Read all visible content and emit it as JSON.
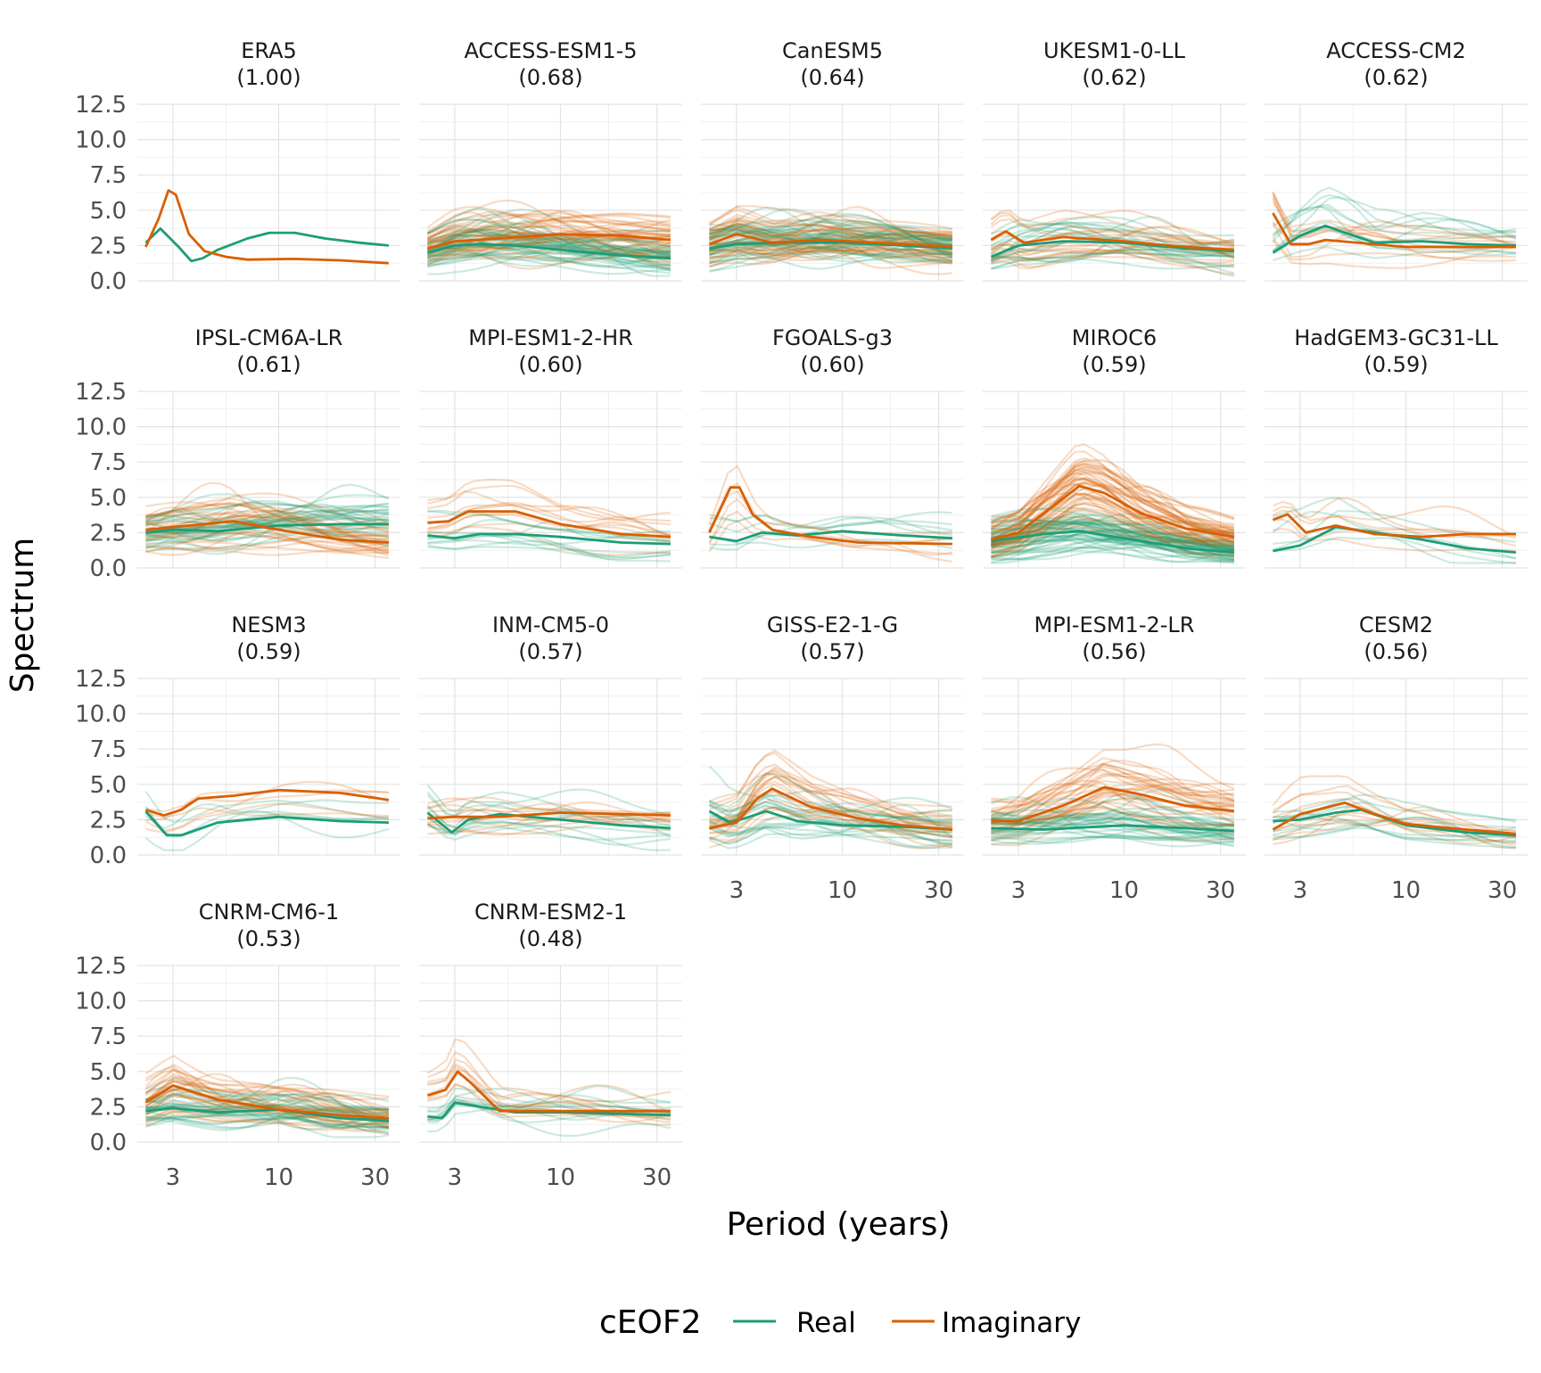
{
  "chart_data": {
    "type": "line",
    "ylabel": "Spectrum",
    "xlabel": "Period (years)",
    "x_scale": "log",
    "xlim": [
      2,
      40
    ],
    "ylim": [
      0,
      12.5
    ],
    "x_ticks": [
      3,
      10,
      30
    ],
    "x_tick_labels": [
      "3",
      "10",
      "30"
    ],
    "y_ticks": [
      0,
      2.5,
      5,
      7.5,
      10,
      12.5
    ],
    "y_tick_labels": [
      "0.0",
      "2.5",
      "5.0",
      "7.5",
      "10.0",
      "12.5"
    ],
    "grid": true,
    "legend": {
      "title": "cEOF2",
      "position": "bottom",
      "entries": [
        {
          "name": "Real",
          "color": "#1b9e77"
        },
        {
          "name": "Imaginary",
          "color": "#d95f02"
        }
      ]
    },
    "colors": {
      "Real": "#1b9e77",
      "Imaginary": "#d95f02"
    },
    "panels": [
      {
        "title": "ERA5",
        "score": "(1.00)",
        "members": 0,
        "real": [
          [
            2.2,
            2.7
          ],
          [
            2.6,
            3.7
          ],
          [
            3.2,
            2.4
          ],
          [
            3.7,
            1.4
          ],
          [
            4.2,
            1.6
          ],
          [
            5,
            2.2
          ],
          [
            7,
            3.0
          ],
          [
            9,
            3.4
          ],
          [
            12,
            3.4
          ],
          [
            17,
            3.0
          ],
          [
            25,
            2.7
          ],
          [
            35,
            2.5
          ]
        ],
        "imaginary": [
          [
            2.2,
            2.4
          ],
          [
            2.55,
            4.4
          ],
          [
            2.85,
            6.4
          ],
          [
            3.1,
            6.1
          ],
          [
            3.6,
            3.3
          ],
          [
            4.3,
            2.1
          ],
          [
            5.5,
            1.7
          ],
          [
            7,
            1.5
          ],
          [
            12,
            1.55
          ],
          [
            20,
            1.45
          ],
          [
            35,
            1.25
          ]
        ]
      },
      {
        "title": "ACCESS-ESM1-5",
        "score": "(0.68)",
        "members": 40,
        "real": [
          [
            2.2,
            2.0
          ],
          [
            3,
            2.5
          ],
          [
            4,
            2.6
          ],
          [
            6,
            2.5
          ],
          [
            10,
            2.2
          ],
          [
            20,
            1.8
          ],
          [
            35,
            1.6
          ]
        ],
        "imaginary": [
          [
            2.2,
            2.3
          ],
          [
            3,
            2.8
          ],
          [
            5,
            3.0
          ],
          [
            10,
            3.3
          ],
          [
            20,
            3.2
          ],
          [
            35,
            2.9
          ]
        ]
      },
      {
        "title": "CanESM5",
        "score": "(0.64)",
        "members": 40,
        "real": [
          [
            2.2,
            2.3
          ],
          [
            3,
            2.6
          ],
          [
            5,
            2.7
          ],
          [
            10,
            2.7
          ],
          [
            20,
            2.5
          ],
          [
            35,
            2.3
          ]
        ],
        "imaginary": [
          [
            2.2,
            2.6
          ],
          [
            3,
            3.3
          ],
          [
            4.5,
            2.7
          ],
          [
            8,
            2.9
          ],
          [
            20,
            2.6
          ],
          [
            35,
            2.4
          ]
        ]
      },
      {
        "title": "UKESM1-0-LL",
        "score": "(0.62)",
        "members": 19,
        "real": [
          [
            2.2,
            1.7
          ],
          [
            3,
            2.5
          ],
          [
            5,
            2.8
          ],
          [
            10,
            2.7
          ],
          [
            20,
            2.3
          ],
          [
            35,
            2.1
          ]
        ],
        "imaginary": [
          [
            2.2,
            2.9
          ],
          [
            2.6,
            3.5
          ],
          [
            3.2,
            2.7
          ],
          [
            5,
            3.1
          ],
          [
            10,
            2.8
          ],
          [
            20,
            2.4
          ],
          [
            35,
            2.2
          ]
        ]
      },
      {
        "title": "ACCESS-CM2",
        "score": "(0.62)",
        "members": 10,
        "real": [
          [
            2.2,
            2.0
          ],
          [
            3,
            3.2
          ],
          [
            4,
            3.9
          ],
          [
            5,
            3.4
          ],
          [
            7,
            2.7
          ],
          [
            12,
            2.8
          ],
          [
            20,
            2.6
          ],
          [
            35,
            2.5
          ]
        ],
        "imaginary": [
          [
            2.2,
            4.8
          ],
          [
            2.7,
            2.6
          ],
          [
            3.3,
            2.6
          ],
          [
            4,
            2.9
          ],
          [
            10,
            2.4
          ],
          [
            20,
            2.4
          ],
          [
            35,
            2.4
          ]
        ]
      },
      {
        "title": "IPSL-CM6A-LR",
        "score": "(0.61)",
        "members": 30,
        "real": [
          [
            2.2,
            2.5
          ],
          [
            3,
            2.7
          ],
          [
            5,
            2.6
          ],
          [
            10,
            3.0
          ],
          [
            20,
            3.1
          ],
          [
            35,
            3.1
          ]
        ],
        "imaginary": [
          [
            2.2,
            2.7
          ],
          [
            3,
            2.9
          ],
          [
            6,
            3.3
          ],
          [
            10,
            2.7
          ],
          [
            20,
            2.0
          ],
          [
            35,
            1.8
          ]
        ]
      },
      {
        "title": "MPI-ESM1-2-HR",
        "score": "(0.60)",
        "members": 10,
        "real": [
          [
            2.2,
            2.3
          ],
          [
            3,
            2.1
          ],
          [
            4,
            2.4
          ],
          [
            6,
            2.4
          ],
          [
            10,
            2.2
          ],
          [
            20,
            1.8
          ],
          [
            35,
            1.7
          ]
        ],
        "imaginary": [
          [
            2.2,
            3.2
          ],
          [
            2.8,
            3.3
          ],
          [
            3.5,
            4.0
          ],
          [
            6,
            4.0
          ],
          [
            10,
            3.1
          ],
          [
            20,
            2.4
          ],
          [
            35,
            2.2
          ]
        ]
      },
      {
        "title": "FGOALS-g3",
        "score": "(0.60)",
        "members": 6,
        "real": [
          [
            2.2,
            2.2
          ],
          [
            3,
            1.9
          ],
          [
            4,
            2.5
          ],
          [
            6,
            2.3
          ],
          [
            10,
            2.6
          ],
          [
            20,
            2.3
          ],
          [
            35,
            2.1
          ]
        ],
        "imaginary": [
          [
            2.2,
            2.5
          ],
          [
            2.8,
            5.7
          ],
          [
            3.1,
            5.7
          ],
          [
            3.6,
            3.8
          ],
          [
            4.5,
            2.7
          ],
          [
            7,
            2.2
          ],
          [
            12,
            1.8
          ],
          [
            35,
            1.7
          ]
        ]
      },
      {
        "title": "MIROC6",
        "score": "(0.59)",
        "members": 50,
        "real": [
          [
            2.2,
            1.9
          ],
          [
            4,
            2.4
          ],
          [
            6,
            2.6
          ],
          [
            10,
            2.1
          ],
          [
            20,
            1.4
          ],
          [
            35,
            1.1
          ]
        ],
        "imaginary": [
          [
            2.2,
            2.0
          ],
          [
            3,
            2.5
          ],
          [
            4.5,
            4.4
          ],
          [
            6,
            5.8
          ],
          [
            8,
            5.3
          ],
          [
            12,
            3.9
          ],
          [
            20,
            2.8
          ],
          [
            35,
            2.2
          ]
        ]
      },
      {
        "title": "HadGEM3-GC31-LL",
        "score": "(0.59)",
        "members": 5,
        "real": [
          [
            2.2,
            1.2
          ],
          [
            3,
            1.6
          ],
          [
            4.5,
            2.9
          ],
          [
            7,
            2.5
          ],
          [
            12,
            2.0
          ],
          [
            20,
            1.4
          ],
          [
            35,
            1.1
          ]
        ],
        "imaginary": [
          [
            2.2,
            3.4
          ],
          [
            2.6,
            3.8
          ],
          [
            3.2,
            2.5
          ],
          [
            4.5,
            3.0
          ],
          [
            7,
            2.4
          ],
          [
            12,
            2.2
          ],
          [
            20,
            2.4
          ],
          [
            35,
            2.4
          ]
        ]
      },
      {
        "title": "NESM3",
        "score": "(0.59)",
        "members": 5,
        "real": [
          [
            2.2,
            3.1
          ],
          [
            2.8,
            1.4
          ],
          [
            3.3,
            1.4
          ],
          [
            5,
            2.3
          ],
          [
            10,
            2.7
          ],
          [
            20,
            2.4
          ],
          [
            35,
            2.3
          ]
        ],
        "imaginary": [
          [
            2.2,
            3.2
          ],
          [
            2.7,
            2.8
          ],
          [
            3.3,
            3.2
          ],
          [
            4,
            4.0
          ],
          [
            6,
            4.2
          ],
          [
            10,
            4.6
          ],
          [
            20,
            4.4
          ],
          [
            35,
            3.9
          ]
        ]
      },
      {
        "title": "INM-CM5-0",
        "score": "(0.57)",
        "members": 10,
        "real": [
          [
            2.2,
            3.0
          ],
          [
            2.9,
            1.6
          ],
          [
            3.5,
            2.5
          ],
          [
            5,
            2.9
          ],
          [
            10,
            2.5
          ],
          [
            20,
            2.1
          ],
          [
            35,
            1.9
          ]
        ],
        "imaginary": [
          [
            2.2,
            2.6
          ],
          [
            3,
            2.7
          ],
          [
            5,
            2.7
          ],
          [
            10,
            3.0
          ],
          [
            20,
            2.9
          ],
          [
            35,
            2.8
          ]
        ]
      },
      {
        "title": "GISS-E2-1-G",
        "score": "(0.57)",
        "members": 20,
        "real": [
          [
            2.2,
            3.1
          ],
          [
            2.8,
            2.3
          ],
          [
            3.3,
            2.6
          ],
          [
            4.2,
            3.1
          ],
          [
            6,
            2.4
          ],
          [
            10,
            2.1
          ],
          [
            20,
            2.0
          ],
          [
            35,
            1.8
          ]
        ],
        "imaginary": [
          [
            2.2,
            1.9
          ],
          [
            3,
            2.3
          ],
          [
            3.8,
            4.0
          ],
          [
            4.5,
            4.7
          ],
          [
            7,
            3.4
          ],
          [
            12,
            2.6
          ],
          [
            20,
            2.1
          ],
          [
            35,
            1.8
          ]
        ]
      },
      {
        "title": "MPI-ESM1-2-LR",
        "score": "(0.56)",
        "members": 30,
        "real": [
          [
            2.2,
            1.9
          ],
          [
            4,
            1.8
          ],
          [
            10,
            2.1
          ],
          [
            20,
            1.9
          ],
          [
            35,
            1.7
          ]
        ],
        "imaginary": [
          [
            2.2,
            2.4
          ],
          [
            3,
            2.4
          ],
          [
            5,
            3.5
          ],
          [
            8,
            4.8
          ],
          [
            12,
            4.3
          ],
          [
            20,
            3.5
          ],
          [
            35,
            3.1
          ]
        ]
      },
      {
        "title": "CESM2",
        "score": "(0.56)",
        "members": 10,
        "real": [
          [
            2.2,
            2.4
          ],
          [
            3,
            2.5
          ],
          [
            4.5,
            3.0
          ],
          [
            6,
            3.2
          ],
          [
            10,
            2.1
          ],
          [
            20,
            1.6
          ],
          [
            35,
            1.4
          ]
        ],
        "imaginary": [
          [
            2.2,
            1.8
          ],
          [
            3,
            2.9
          ],
          [
            5,
            3.7
          ],
          [
            7,
            2.9
          ],
          [
            10,
            2.2
          ],
          [
            20,
            1.8
          ],
          [
            35,
            1.5
          ]
        ]
      },
      {
        "title": "CNRM-CM6-1",
        "score": "(0.53)",
        "members": 30,
        "real": [
          [
            2.2,
            2.2
          ],
          [
            3,
            2.4
          ],
          [
            5,
            2.1
          ],
          [
            10,
            2.3
          ],
          [
            20,
            1.7
          ],
          [
            35,
            1.5
          ]
        ],
        "imaginary": [
          [
            2.2,
            2.8
          ],
          [
            3,
            4.0
          ],
          [
            5,
            3.0
          ],
          [
            10,
            2.3
          ],
          [
            20,
            1.9
          ],
          [
            35,
            1.7
          ]
        ]
      },
      {
        "title": "CNRM-ESM2-1",
        "score": "(0.48)",
        "members": 10,
        "real": [
          [
            2.2,
            1.8
          ],
          [
            2.6,
            1.7
          ],
          [
            3,
            2.8
          ],
          [
            4,
            2.5
          ],
          [
            6,
            2.1
          ],
          [
            10,
            2.1
          ],
          [
            20,
            2.0
          ],
          [
            35,
            1.9
          ]
        ],
        "imaginary": [
          [
            2.2,
            3.3
          ],
          [
            2.7,
            3.7
          ],
          [
            3.1,
            5.0
          ],
          [
            3.6,
            4.2
          ],
          [
            5,
            2.2
          ],
          [
            10,
            2.2
          ],
          [
            20,
            2.2
          ],
          [
            35,
            2.2
          ]
        ]
      }
    ]
  }
}
